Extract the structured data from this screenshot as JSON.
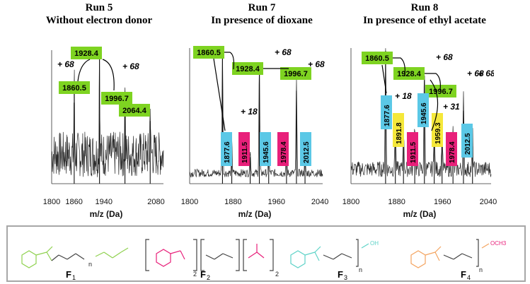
{
  "chart_data": [
    {
      "type": "line",
      "run": "Run 5",
      "subtitle": "Without electron donor",
      "xlabel": "m/z (Da)",
      "xlim": [
        1800,
        2100
      ],
      "xticks": [
        1800,
        1860,
        1940,
        2080
      ],
      "peaks": [
        {
          "x": 1860.5,
          "h": 0.62
        },
        {
          "x": 1928.4,
          "h": 1.0
        },
        {
          "x": 1996.7,
          "h": 0.62
        },
        {
          "x": 2064.4,
          "h": 0.48
        }
      ],
      "labels": [
        {
          "text": "1860.5",
          "color": "#7ed321"
        },
        {
          "text": "1928.4",
          "color": "#7ed321"
        },
        {
          "text": "1996.7",
          "color": "#7ed321"
        },
        {
          "text": "2064.4",
          "color": "#7ed321"
        }
      ],
      "annotations": [
        "+ 68",
        "+ 68"
      ]
    },
    {
      "type": "line",
      "run": "Run 7",
      "subtitle": "In presence of dioxane",
      "xlabel": "m/z (Da)",
      "xlim": [
        1800,
        2045
      ],
      "xticks": [
        1800,
        1880,
        1960,
        2040
      ],
      "peaks": [
        {
          "x": 1860.5,
          "h": 1.0
        },
        {
          "x": 1877.6,
          "h": 0.28
        },
        {
          "x": 1911.5,
          "h": 0.2
        },
        {
          "x": 1928.4,
          "h": 0.85
        },
        {
          "x": 1945.6,
          "h": 0.22
        },
        {
          "x": 1978.4,
          "h": 0.2
        },
        {
          "x": 1996.7,
          "h": 0.7
        },
        {
          "x": 2012.5,
          "h": 0.18
        }
      ],
      "labels": [
        {
          "text": "1860.5",
          "color": "#7ed321"
        },
        {
          "text": "1928.4",
          "color": "#7ed321"
        },
        {
          "text": "1996.7",
          "color": "#7ed321"
        },
        {
          "text": "1877.6",
          "color": "#5bc8e6"
        },
        {
          "text": "1911.5",
          "color": "#e8207a"
        },
        {
          "text": "1945.6",
          "color": "#5bc8e6"
        },
        {
          "text": "1978.4",
          "color": "#e8207a"
        },
        {
          "text": "2012.5",
          "color": "#5bc8e6"
        }
      ],
      "annotations": [
        "+ 68",
        "+ 68",
        "+ 18"
      ]
    },
    {
      "type": "line",
      "run": "Run 8",
      "subtitle": "In presence of ethyl acetate",
      "xlabel": "m/z (Da)",
      "xlim": [
        1800,
        2045
      ],
      "xticks": [
        1800,
        1880,
        1960,
        2040
      ],
      "peaks": [
        {
          "x": 1860.5,
          "h": 1.0
        },
        {
          "x": 1877.6,
          "h": 0.45
        },
        {
          "x": 1891.8,
          "h": 0.3
        },
        {
          "x": 1911.5,
          "h": 0.35
        },
        {
          "x": 1928.4,
          "h": 0.78
        },
        {
          "x": 1945.6,
          "h": 0.38
        },
        {
          "x": 1959.3,
          "h": 0.32
        },
        {
          "x": 1978.4,
          "h": 0.3
        },
        {
          "x": 1996.7,
          "h": 0.55
        },
        {
          "x": 2012.5,
          "h": 0.28
        }
      ],
      "labels": [
        {
          "text": "1860.5",
          "color": "#7ed321"
        },
        {
          "text": "1928.4",
          "color": "#7ed321"
        },
        {
          "text": "1996.7",
          "color": "#7ed321"
        },
        {
          "text": "1877.6",
          "color": "#5bc8e6"
        },
        {
          "text": "1891.8",
          "color": "#f5e83a"
        },
        {
          "text": "1911.5",
          "color": "#e8207a"
        },
        {
          "text": "1945.6",
          "color": "#5bc8e6"
        },
        {
          "text": "1959.3",
          "color": "#f5e83a"
        },
        {
          "text": "1978.4",
          "color": "#e8207a"
        },
        {
          "text": "2012.5",
          "color": "#5bc8e6"
        }
      ],
      "annotations": [
        "+ 68",
        "+ 68",
        "+ 68",
        "+ 18",
        "+ 31"
      ]
    }
  ],
  "legend": {
    "structures": [
      {
        "name": "F",
        "sub": "1",
        "color": "#8fd14f",
        "n": "n"
      },
      {
        "name": "F",
        "sub": "2",
        "color": "#e8207a",
        "n": "2"
      },
      {
        "name": "F",
        "sub": "3",
        "color": "#5fd3c8",
        "n": "n",
        "end": "OH"
      },
      {
        "name": "F",
        "sub": "4",
        "color": "#f4a460",
        "n": "n",
        "end": "OCH3"
      }
    ]
  }
}
